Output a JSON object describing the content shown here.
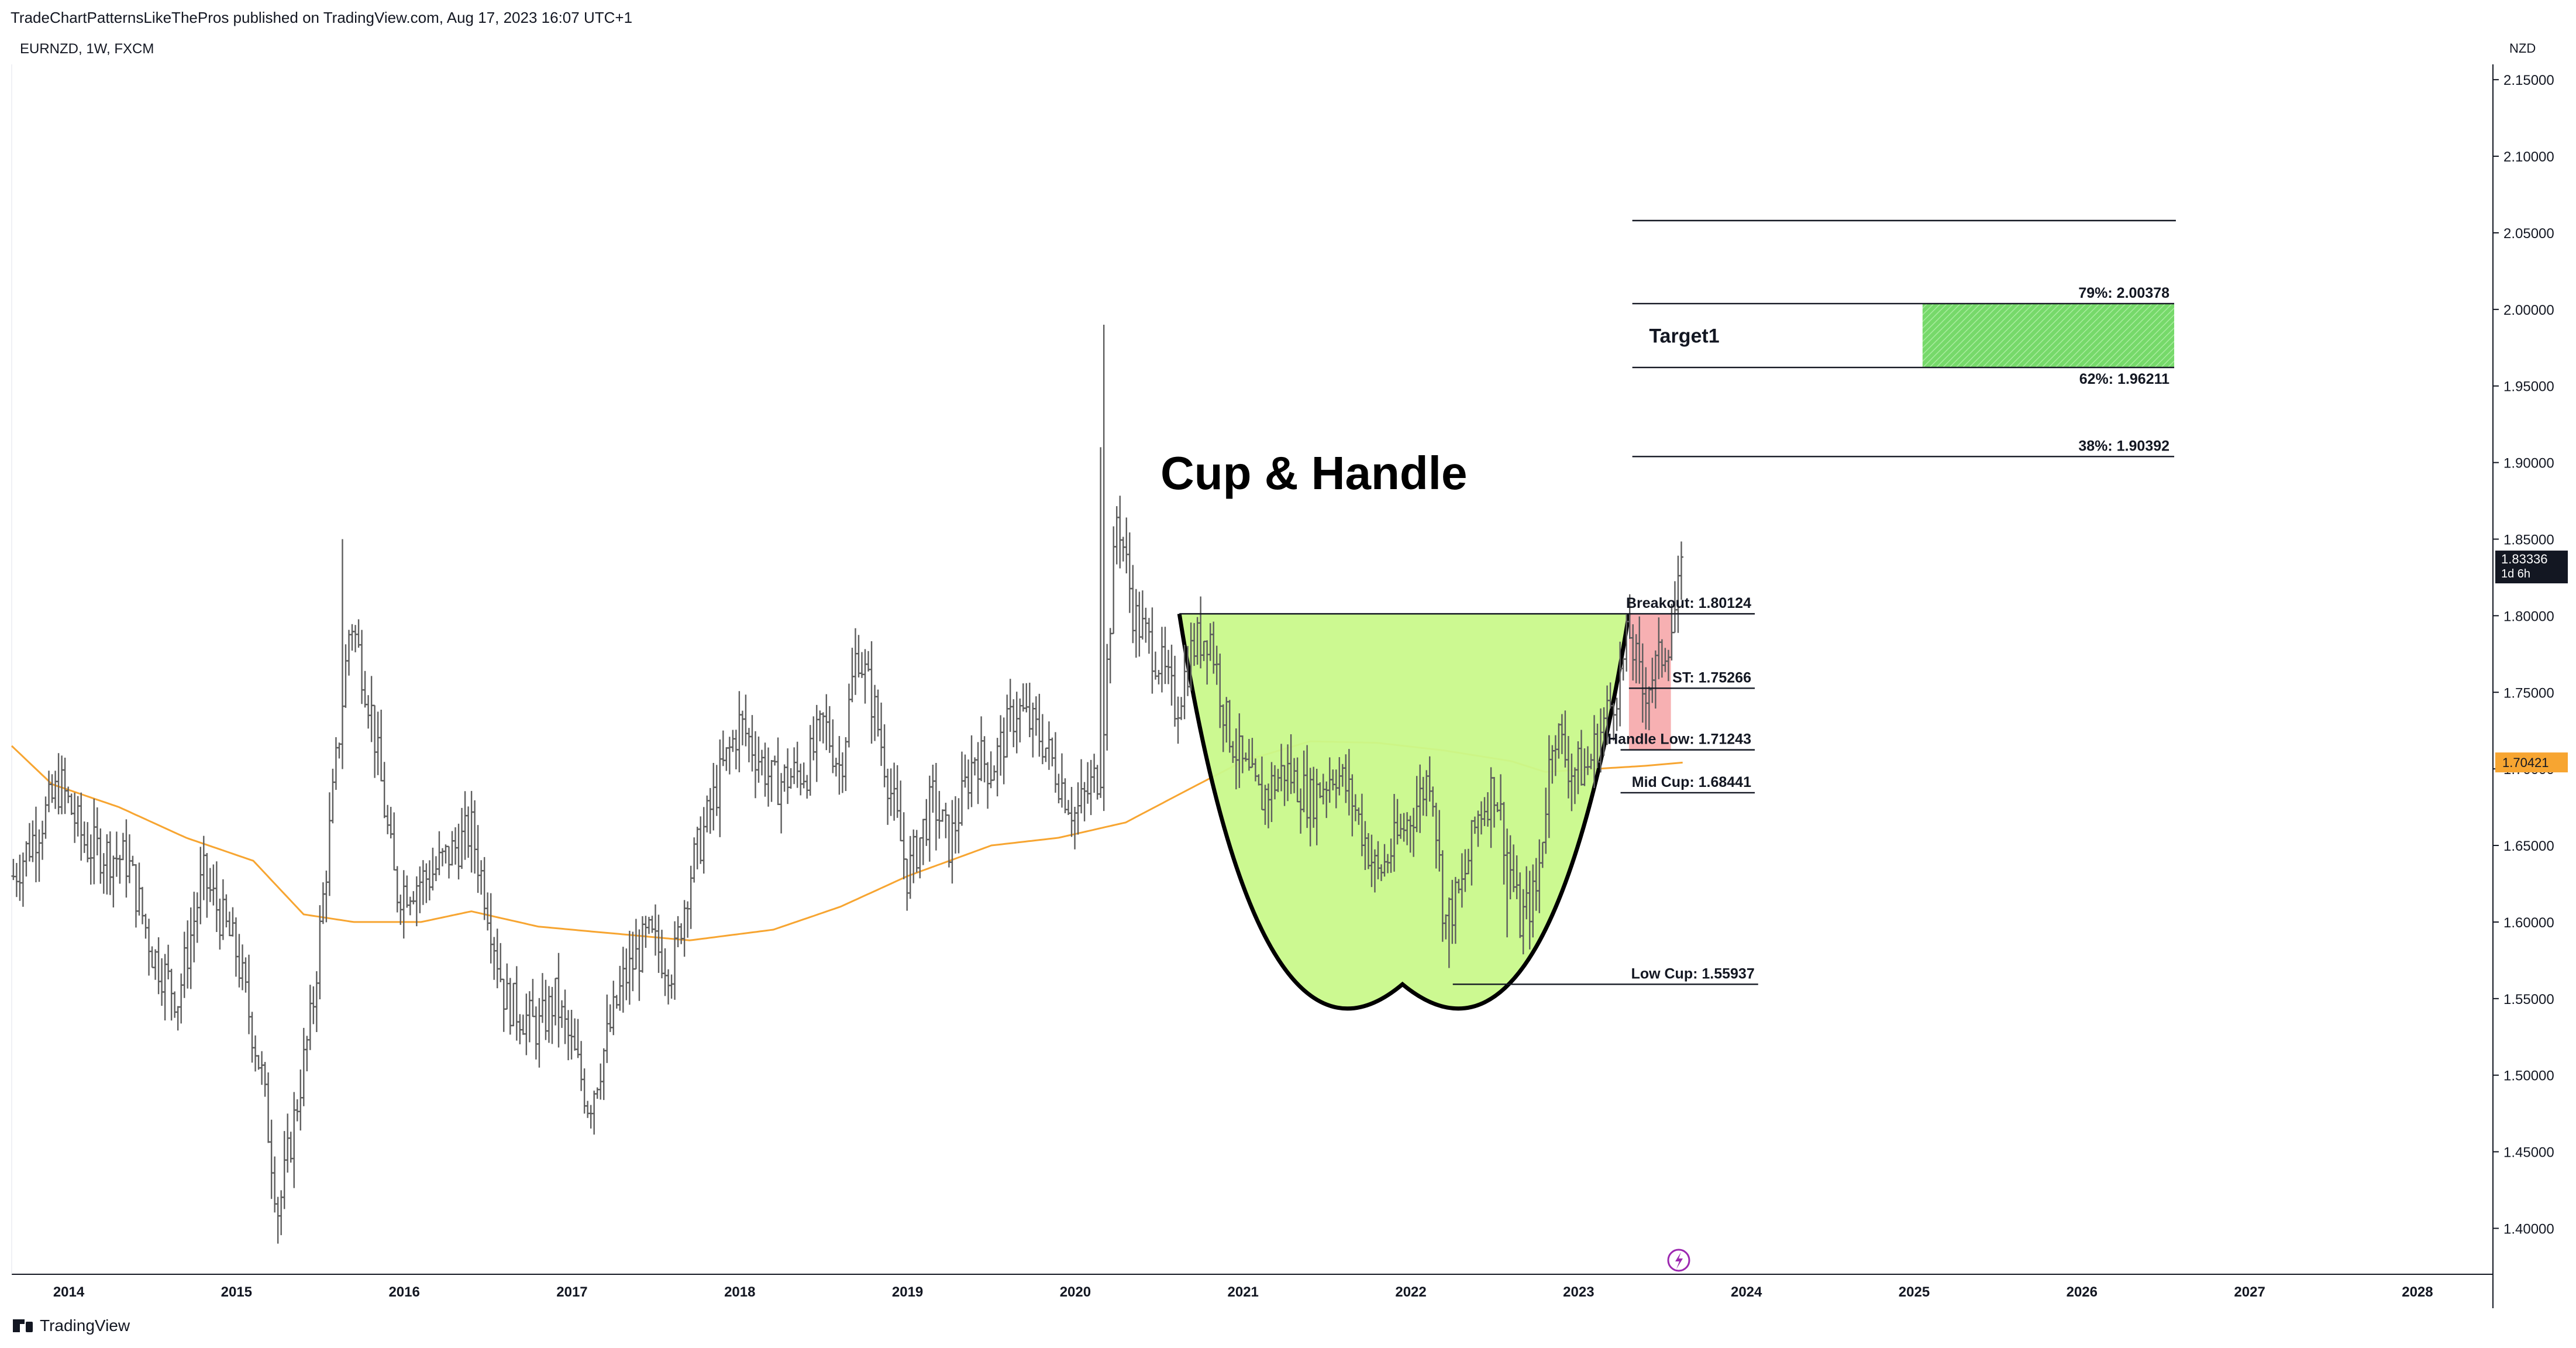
{
  "header": {
    "publisher_line": "TradeChartPatternsLikeThePros published on TradingView.com, Aug 17, 2023 16:07 UTC+1"
  },
  "symbol_line": "EURNZD, 1W, FXCM",
  "currency": "NZD",
  "footer": {
    "brand": "TradingView"
  },
  "colors": {
    "candle": "#5d5d5d",
    "ma": "#f7a531",
    "cup_fill": "#c9f98b",
    "target_fill": "#76d96a",
    "handle_zone": "#f6a2a4",
    "current_price_bg": "#131722",
    "ma_label_bg": "#f7a531"
  },
  "chart_data": {
    "type": "bar",
    "x_ticks": [
      "2014",
      "2015",
      "2016",
      "2017",
      "2018",
      "2019",
      "2020",
      "2021",
      "2022",
      "2023",
      "2024",
      "2025",
      "2026",
      "2027",
      "2028"
    ],
    "y_ticks": [
      "2.15000",
      "2.10000",
      "2.05000",
      "2.00000",
      "1.95000",
      "1.90000",
      "1.85000",
      "1.80000",
      "1.75000",
      "1.70000",
      "1.65000",
      "1.60000",
      "1.55000",
      "1.50000",
      "1.45000",
      "1.40000"
    ],
    "ylim": [
      1.37,
      2.16
    ],
    "xlim": [
      2013.66,
      2028.45
    ],
    "price_key_points": [
      [
        2013.67,
        1.63
      ],
      [
        2013.95,
        1.69
      ],
      [
        2014.1,
        1.65
      ],
      [
        2014.35,
        1.64
      ],
      [
        2014.5,
        1.58
      ],
      [
        2014.65,
        1.55
      ],
      [
        2014.8,
        1.63
      ],
      [
        2015.0,
        1.58
      ],
      [
        2015.15,
        1.5
      ],
      [
        2015.25,
        1.41
      ],
      [
        2015.45,
        1.54
      ],
      [
        2015.6,
        1.71
      ],
      [
        2015.68,
        1.8
      ],
      [
        2015.8,
        1.74
      ],
      [
        2015.95,
        1.62
      ],
      [
        2016.15,
        1.63
      ],
      [
        2016.4,
        1.66
      ],
      [
        2016.5,
        1.61
      ],
      [
        2016.6,
        1.55
      ],
      [
        2016.8,
        1.53
      ],
      [
        2016.9,
        1.55
      ],
      [
        2017.05,
        1.5
      ],
      [
        2017.1,
        1.48
      ],
      [
        2017.3,
        1.56
      ],
      [
        2017.45,
        1.59
      ],
      [
        2017.6,
        1.57
      ],
      [
        2017.7,
        1.63
      ],
      [
        2017.9,
        1.7
      ],
      [
        2018.0,
        1.73
      ],
      [
        2018.2,
        1.69
      ],
      [
        2018.4,
        1.7
      ],
      [
        2018.5,
        1.73
      ],
      [
        2018.6,
        1.7
      ],
      [
        2018.7,
        1.78
      ],
      [
        2018.8,
        1.74
      ],
      [
        2019.0,
        1.63
      ],
      [
        2019.15,
        1.68
      ],
      [
        2019.25,
        1.65
      ],
      [
        2019.4,
        1.71
      ],
      [
        2019.5,
        1.7
      ],
      [
        2019.65,
        1.74
      ],
      [
        2019.8,
        1.72
      ],
      [
        2020.0,
        1.67
      ],
      [
        2020.15,
        1.7
      ],
      [
        2020.25,
        1.87
      ],
      [
        2020.35,
        1.8
      ],
      [
        2020.5,
        1.77
      ],
      [
        2020.6,
        1.74
      ],
      [
        2020.7,
        1.78
      ],
      [
        2020.8,
        1.79
      ],
      [
        2020.9,
        1.73
      ],
      [
        2021.0,
        1.7
      ],
      [
        2021.1,
        1.68
      ],
      [
        2021.25,
        1.7
      ],
      [
        2021.4,
        1.68
      ],
      [
        2021.55,
        1.7
      ],
      [
        2021.65,
        1.68
      ],
      [
        2021.8,
        1.63
      ],
      [
        2021.9,
        1.65
      ],
      [
        2022.05,
        1.68
      ],
      [
        2022.12,
        1.7
      ],
      [
        2022.2,
        1.6
      ],
      [
        2022.3,
        1.62
      ],
      [
        2022.4,
        1.67
      ],
      [
        2022.5,
        1.69
      ],
      [
        2022.6,
        1.63
      ],
      [
        2022.65,
        1.6
      ],
      [
        2022.75,
        1.62
      ],
      [
        2022.85,
        1.73
      ],
      [
        2022.95,
        1.7
      ],
      [
        2023.05,
        1.7
      ],
      [
        2023.15,
        1.73
      ],
      [
        2023.25,
        1.76
      ],
      [
        2023.3,
        1.79
      ],
      [
        2023.38,
        1.75
      ],
      [
        2023.48,
        1.77
      ],
      [
        2023.55,
        1.79
      ],
      [
        2023.63,
        1.83336
      ]
    ],
    "spikes": [
      [
        2015.63,
        1.85
      ],
      [
        2020.17,
        1.99
      ],
      [
        2020.15,
        1.91
      ],
      [
        2015.25,
        1.39
      ],
      [
        2022.22,
        1.57
      ],
      [
        2022.58,
        1.59
      ],
      [
        2023.63,
        1.84
      ]
    ],
    "ma_key_points": [
      [
        2013.66,
        1.715
      ],
      [
        2013.9,
        1.69
      ],
      [
        2014.3,
        1.675
      ],
      [
        2014.7,
        1.655
      ],
      [
        2015.1,
        1.64
      ],
      [
        2015.4,
        1.605
      ],
      [
        2015.7,
        1.6
      ],
      [
        2016.1,
        1.6
      ],
      [
        2016.4,
        1.607
      ],
      [
        2016.8,
        1.597
      ],
      [
        2017.3,
        1.592
      ],
      [
        2017.7,
        1.588
      ],
      [
        2018.2,
        1.595
      ],
      [
        2018.6,
        1.61
      ],
      [
        2019.0,
        1.63
      ],
      [
        2019.5,
        1.65
      ],
      [
        2019.9,
        1.655
      ],
      [
        2020.3,
        1.665
      ],
      [
        2020.7,
        1.688
      ],
      [
        2021.0,
        1.705
      ],
      [
        2021.4,
        1.718
      ],
      [
        2021.8,
        1.717
      ],
      [
        2022.2,
        1.712
      ],
      [
        2022.6,
        1.705
      ],
      [
        2022.8,
        1.698
      ],
      [
        2023.1,
        1.7
      ],
      [
        2023.4,
        1.702
      ],
      [
        2023.63,
        1.70421
      ]
    ],
    "title": "Cup & Handle",
    "current_price": {
      "value": "1.83336",
      "countdown": "1d 6h"
    },
    "ma_value": "1.70421",
    "levels": [
      {
        "label": "Breakout: 1.80124",
        "value": 1.80124,
        "x_start": 2020.62,
        "x_end": 2024.05
      },
      {
        "label": "ST: 1.75266",
        "value": 1.75266,
        "x_start": 2023.3,
        "x_end": 2024.05
      },
      {
        "label": "Handle Low: 1.71243",
        "value": 1.71243,
        "x_start": 2023.25,
        "x_end": 2024.05
      },
      {
        "label": "Mid Cup: 1.68441",
        "value": 1.68441,
        "x_start": 2023.25,
        "x_end": 2024.05
      },
      {
        "label": "Low Cup: 1.55937",
        "value": 1.55937,
        "x_start": 2022.25,
        "x_end": 2024.07
      }
    ],
    "fib_levels": [
      {
        "label": "",
        "value": 2.058,
        "x_start": 2023.32,
        "x_end": 2026.56
      },
      {
        "label": "79%: 2.00378",
        "value": 2.00378,
        "x_start": 2023.32,
        "x_end": 2026.55
      },
      {
        "label": "62%: 1.96211",
        "value": 1.96211,
        "x_start": 2023.32,
        "x_end": 2026.55
      },
      {
        "label": "38%: 1.90392",
        "value": 1.90392,
        "x_start": 2023.32,
        "x_end": 2026.55
      }
    ],
    "target": {
      "label": "Target1",
      "y_top": 2.00378,
      "y_bottom": 1.96211,
      "x_start": 2025.05,
      "x_end": 2026.55
    },
    "cup": {
      "left_x": 2020.62,
      "rim_y": 1.80124,
      "bottom_x": 2021.95,
      "bottom_y": 1.55937,
      "right_x": 2023.3
    },
    "handle_zone": {
      "x_start": 2023.3,
      "x_end": 2023.55,
      "y_top": 1.80124,
      "y_bottom": 1.71243
    }
  }
}
